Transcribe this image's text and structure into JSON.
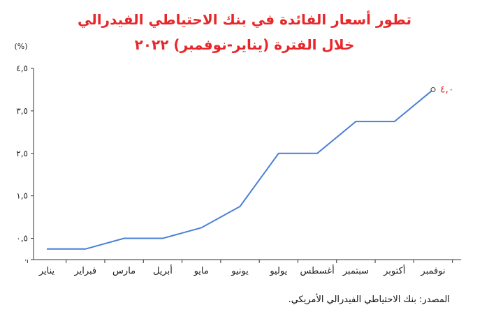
{
  "titles": {
    "line1": "تطور أسعار الفائدة في بنك الاحتياطي الفيدرالي",
    "line2": "خلال الفترة (يناير-نوفمبر) ٢٠٢٢"
  },
  "source_note": "المصدر: بنك الاحتياطي الفيدرالي الأمريكي.",
  "chart_data": {
    "type": "line",
    "title": "تطور أسعار الفائدة في بنك الاحتياطي الفيدرالي خلال الفترة (يناير-نوفمبر) ٢٠٢٢",
    "xlabel": "",
    "ylabel": "(%)",
    "ylim": [
      0,
      4.5
    ],
    "y_ticks": [
      0,
      0.5,
      1.5,
      2.5,
      3.5,
      4.5
    ],
    "y_tick_labels": [
      "٠",
      "٠,٥",
      "١,٥",
      "٢,٥",
      "٣,٥",
      "٤,٥"
    ],
    "categories": [
      "يناير",
      "فبراير",
      "مارس",
      "أبريل",
      "مايو",
      "يونيو",
      "يوليو",
      "أغسطس",
      "سبتمبر",
      "أكتوبر",
      "نوفمبر"
    ],
    "values": [
      0.25,
      0.25,
      0.5,
      0.5,
      0.75,
      1.25,
      2.5,
      2.5,
      3.25,
      3.25,
      4.0
    ],
    "end_label": "٤,٠",
    "grid": false,
    "line_color": "#4a7fd8",
    "label_color": "#e8262a"
  }
}
